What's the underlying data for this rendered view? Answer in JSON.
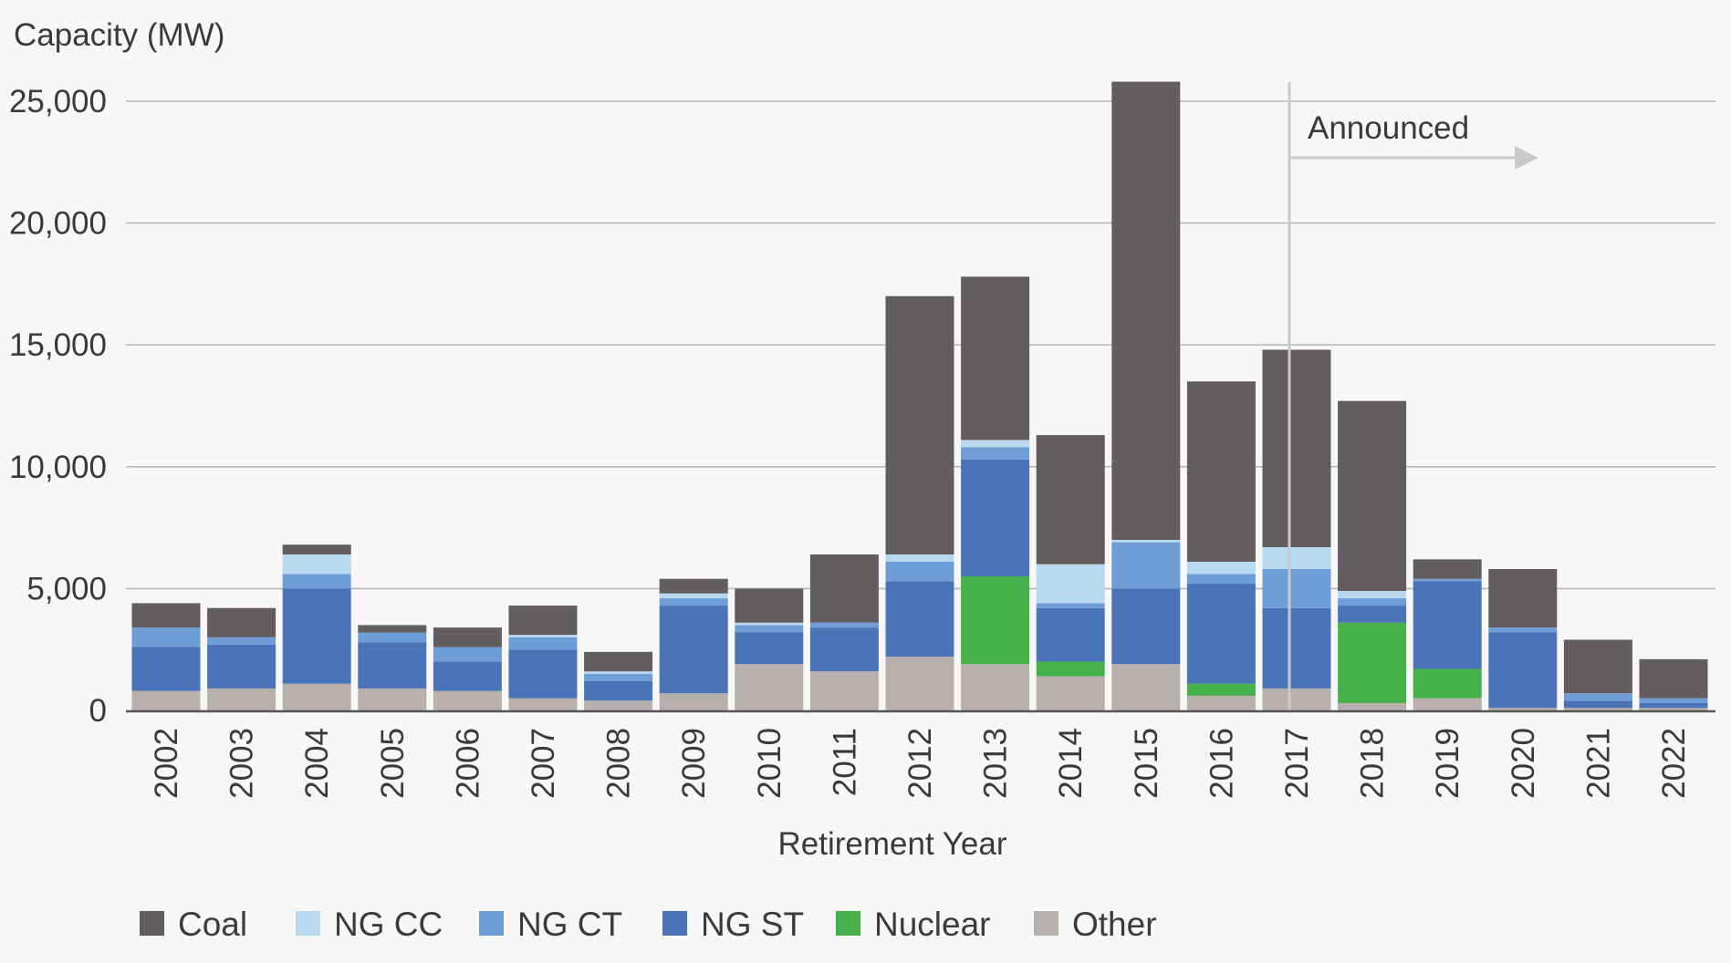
{
  "chart_data": {
    "type": "bar",
    "stacked": true,
    "ylabel": "Capacity (MW)",
    "xlabel": "Retirement Year",
    "ylim": [
      0,
      25000
    ],
    "yticks": [
      0,
      5000,
      10000,
      15000,
      20000,
      25000
    ],
    "ytick_labels": [
      "0",
      "5,000",
      "10,000",
      "15,000",
      "20,000",
      "25,000"
    ],
    "grid": "horizontal",
    "legend_position": "bottom",
    "categories": [
      "2002",
      "2003",
      "2004",
      "2005",
      "2006",
      "2007",
      "2008",
      "2009",
      "2010",
      "2011",
      "2012",
      "2013",
      "2014",
      "2015",
      "2016",
      "2017",
      "2018",
      "2019",
      "2020",
      "2021",
      "2022"
    ],
    "series": [
      {
        "name": "Other",
        "color": "#b7b0ad",
        "values": [
          800,
          900,
          1100,
          900,
          800,
          500,
          400,
          700,
          1900,
          1600,
          2200,
          1900,
          1400,
          1900,
          600,
          900,
          300,
          500,
          100,
          100,
          100
        ]
      },
      {
        "name": "Nuclear",
        "color": "#46b04a",
        "values": [
          0,
          0,
          0,
          0,
          0,
          0,
          0,
          0,
          0,
          0,
          0,
          3600,
          600,
          0,
          500,
          0,
          3300,
          1200,
          0,
          0,
          0
        ]
      },
      {
        "name": "NG ST",
        "color": "#4a74b7",
        "values": [
          1800,
          1800,
          3900,
          1900,
          1200,
          2000,
          800,
          3600,
          1300,
          1800,
          3100,
          4800,
          2200,
          3100,
          4100,
          3300,
          700,
          3600,
          3100,
          300,
          200
        ]
      },
      {
        "name": "NG CT",
        "color": "#6f9ed6",
        "values": [
          800,
          300,
          600,
          400,
          600,
          500,
          300,
          300,
          300,
          200,
          800,
          500,
          200,
          1900,
          400,
          1600,
          300,
          100,
          200,
          300,
          200
        ]
      },
      {
        "name": "NG CC",
        "color": "#b9d9f0",
        "values": [
          0,
          0,
          800,
          0,
          0,
          100,
          100,
          200,
          100,
          0,
          300,
          300,
          1600,
          100,
          500,
          900,
          300,
          0,
          0,
          0,
          0
        ]
      },
      {
        "name": "Coal",
        "color": "#625d5e",
        "values": [
          1000,
          1200,
          400,
          300,
          800,
          1200,
          800,
          600,
          1400,
          2800,
          10600,
          6700,
          5300,
          18800,
          7400,
          8100,
          7800,
          800,
          2400,
          2200,
          1600
        ]
      }
    ],
    "legend_order": [
      "Coal",
      "NG CC",
      "NG CT",
      "NG ST",
      "Nuclear",
      "Other"
    ],
    "annotation": {
      "text": "Announced",
      "start_category": "2017"
    }
  }
}
